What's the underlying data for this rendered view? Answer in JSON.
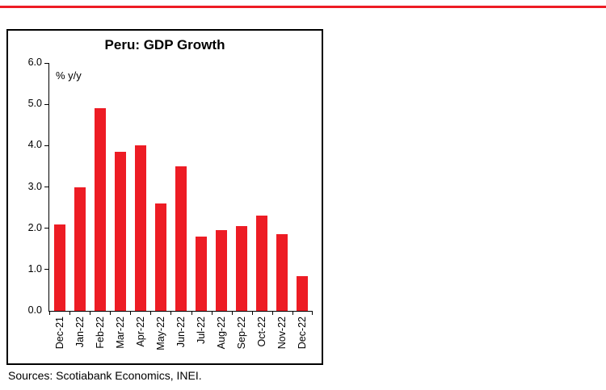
{
  "accent": {
    "top_rule_color": "#ED1C24"
  },
  "chart_data": {
    "type": "bar",
    "title": "Peru: GDP Growth",
    "unit_label": "% y/y",
    "categories": [
      "Dec-21",
      "Jan-22",
      "Feb-22",
      "Mar-22",
      "Apr-22",
      "May-22",
      "Jun-22",
      "Jul-22",
      "Aug-22",
      "Sep-22",
      "Oct-22",
      "Nov-22",
      "Dec-22"
    ],
    "values": [
      2.1,
      3.0,
      4.9,
      3.85,
      4.0,
      2.6,
      3.5,
      1.8,
      1.95,
      2.05,
      2.3,
      1.85,
      0.85
    ],
    "xlabel": "",
    "ylabel": "",
    "ylim": [
      0,
      6
    ],
    "ytick_step": 1,
    "ytick_labels": [
      "0.0",
      "1.0",
      "2.0",
      "3.0",
      "4.0",
      "5.0",
      "6.0"
    ],
    "bar_color": "#ED1C24",
    "grid": false,
    "legend": "none",
    "source": "Sources: Scotiabank Economics, INEI."
  }
}
